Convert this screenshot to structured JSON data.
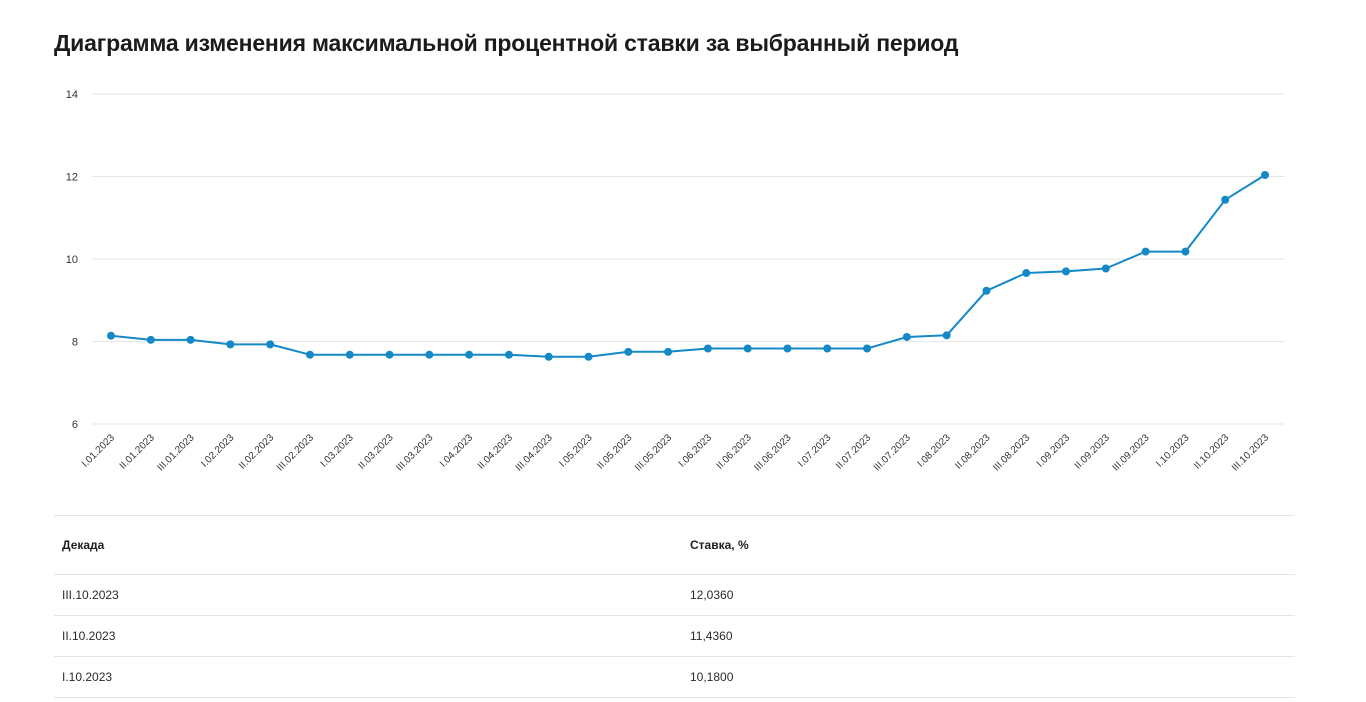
{
  "title": "Диаграмма изменения максимальной процентной ставки за выбранный период",
  "colors": {
    "line": "#1588c8",
    "grid": "#e6e6e6",
    "tick_text": "#333333"
  },
  "chart_data": {
    "type": "line",
    "title": "Диаграмма изменения максимальной процентной ставки за выбранный период",
    "xlabel": "",
    "ylabel": "",
    "ylim": [
      6,
      14
    ],
    "yticks": [
      6,
      8,
      10,
      12,
      14
    ],
    "grid": true,
    "categories": [
      "I.01.2023",
      "II.01.2023",
      "III.01.2023",
      "I.02.2023",
      "II.02.2023",
      "III.02.2023",
      "I.03.2023",
      "II.03.2023",
      "III.03.2023",
      "I.04.2023",
      "II.04.2023",
      "III.04.2023",
      "I.05.2023",
      "II.05.2023",
      "III.05.2023",
      "I.06.2023",
      "II.06.2023",
      "III.06.2023",
      "I.07.2023",
      "II.07.2023",
      "III.07.2023",
      "I.08.2023",
      "II.08.2023",
      "III.08.2023",
      "I.09.2023",
      "II.09.2023",
      "III.09.2023",
      "I.10.2023",
      "II.10.2023",
      "III.10.2023"
    ],
    "series": [
      {
        "values": [
          8.14,
          8.04,
          8.04,
          7.93,
          7.93,
          7.68,
          7.68,
          7.68,
          7.68,
          7.68,
          7.68,
          7.63,
          7.63,
          7.75,
          7.75,
          7.83,
          7.83,
          7.83,
          7.83,
          7.83,
          8.11,
          8.15,
          9.23,
          9.66,
          9.7,
          9.77,
          10.18,
          10.18,
          11.436,
          12.036
        ]
      }
    ]
  },
  "table": {
    "headers": [
      "Декада",
      "Ставка, %"
    ],
    "rows": [
      [
        "III.10.2023",
        "12,0360"
      ],
      [
        "II.10.2023",
        "11,4360"
      ],
      [
        "I.10.2023",
        "10,1800"
      ]
    ]
  }
}
